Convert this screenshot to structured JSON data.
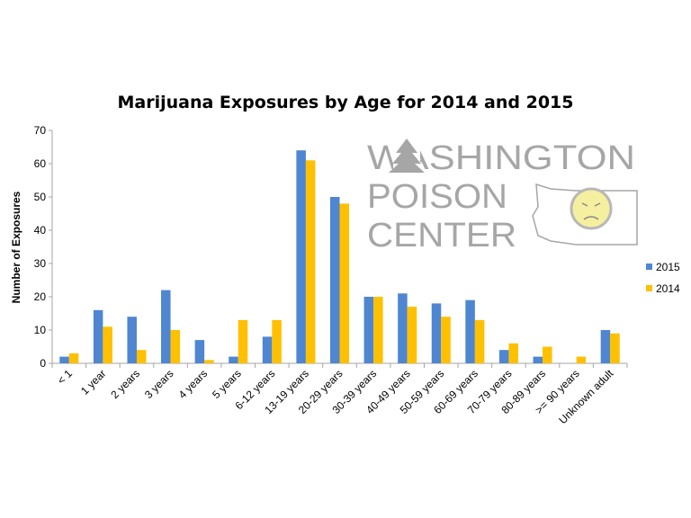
{
  "chart_data": {
    "type": "bar",
    "title": "Marijuana Exposures by Age for 2014 and 2015",
    "xlabel": "",
    "ylabel": "Number of Exposures",
    "ylim": [
      0,
      70
    ],
    "yticks": [
      0,
      10,
      20,
      30,
      40,
      50,
      60,
      70
    ],
    "grid": false,
    "legend_position": "right",
    "categories": [
      "< 1",
      "1 year",
      "2 years",
      "3 years",
      "4 years",
      "5 years",
      "6-12 years",
      "13-19 years",
      "20-29 years",
      "30-39 years",
      "40-49 years",
      "50-59 years",
      "60-69 years",
      "70-79 years",
      "80-89 years",
      ">= 90 years",
      "Unknown adult"
    ],
    "series": [
      {
        "name": "2015",
        "color": "#4f86d1",
        "values": [
          2,
          16,
          14,
          22,
          7,
          2,
          8,
          64,
          50,
          20,
          21,
          18,
          19,
          4,
          2,
          0,
          10
        ]
      },
      {
        "name": "2014",
        "color": "#ffc000",
        "values": [
          3,
          11,
          4,
          10,
          1,
          13,
          13,
          61,
          48,
          20,
          17,
          14,
          13,
          6,
          5,
          2,
          9
        ]
      }
    ]
  },
  "logo": {
    "lines": [
      "WASHINGTON",
      "POISON",
      "CENTER"
    ]
  }
}
